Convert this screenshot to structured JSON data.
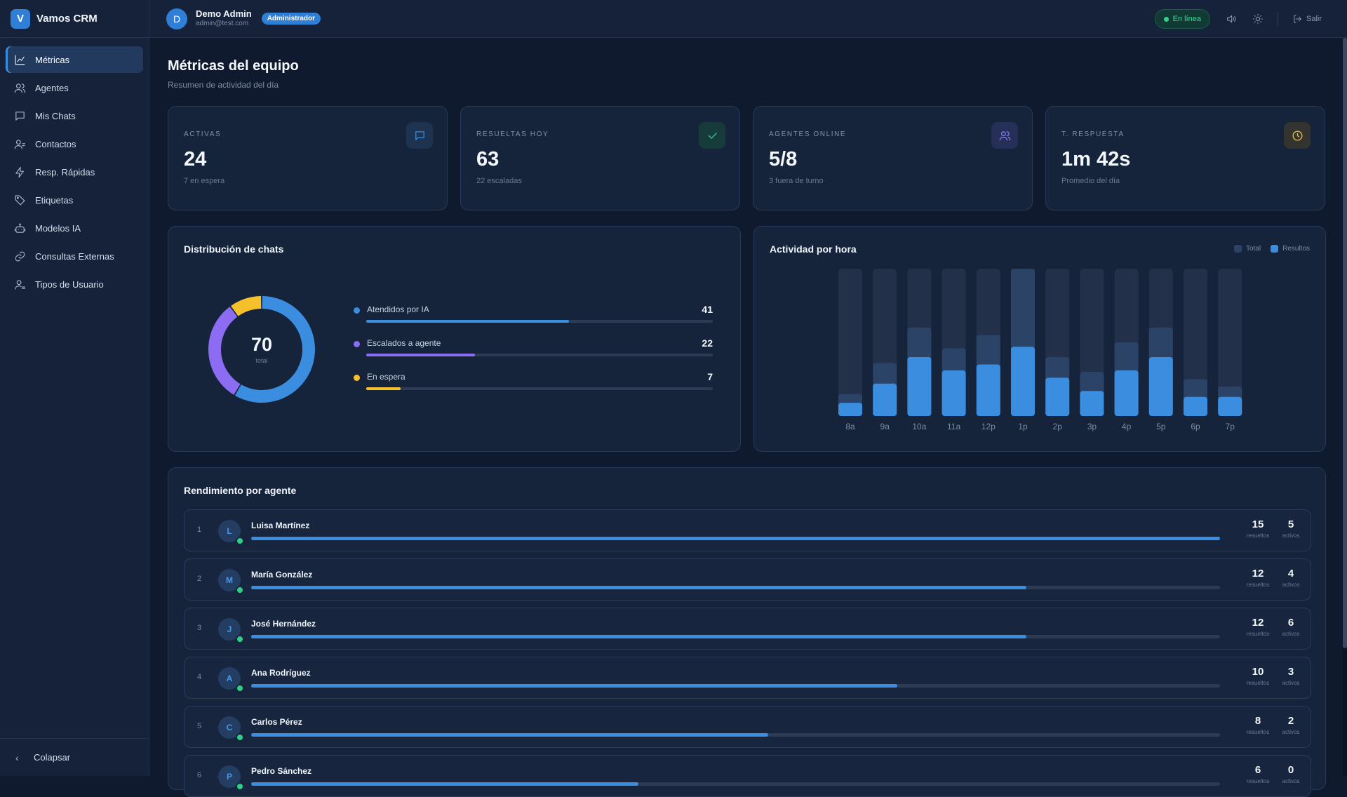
{
  "brand": {
    "logo_letter": "V",
    "name": "Vamos CRM"
  },
  "sidebar": {
    "items": [
      {
        "label": "Métricas",
        "icon": "chart-line-icon",
        "active": true
      },
      {
        "label": "Agentes",
        "icon": "users-icon"
      },
      {
        "label": "Mis Chats",
        "icon": "chat-icon"
      },
      {
        "label": "Contactos",
        "icon": "contacts-icon"
      },
      {
        "label": "Resp. Rápidas",
        "icon": "bolt-icon"
      },
      {
        "label": "Etiquetas",
        "icon": "tag-icon"
      },
      {
        "label": "Modelos IA",
        "icon": "robot-icon"
      },
      {
        "label": "Consultas Externas",
        "icon": "link-icon"
      },
      {
        "label": "Tipos de Usuario",
        "icon": "user-types-icon"
      }
    ],
    "collapse_label": "Colapsar"
  },
  "header": {
    "avatar_letter": "D",
    "user_name": "Demo Admin",
    "user_email": "admin@test.com",
    "role": "Administrador",
    "status": "En línea",
    "logout_label": "Salir"
  },
  "page": {
    "title": "Métricas del equipo",
    "subtitle": "Resumen de actividad del día"
  },
  "stats": [
    {
      "label": "ACTIVAS",
      "value": "24",
      "sub": "7 en espera",
      "icon": "chat-icon",
      "color": "#3b8ddf",
      "bg": "#1d3350"
    },
    {
      "label": "RESUELTAS HOY",
      "value": "63",
      "sub": "22 escaladas",
      "icon": "check-icon",
      "color": "#34d399",
      "bg": "#173a3b"
    },
    {
      "label": "AGENTES ONLINE",
      "value": "5/8",
      "sub": "3 fuera de turno",
      "icon": "users-icon",
      "color": "#8b7cf6",
      "bg": "#262f57"
    },
    {
      "label": "T. RESPUESTA",
      "value": "1m 42s",
      "sub": "Promedio del día",
      "icon": "clock-icon",
      "color": "#f5c02a",
      "bg": "#33342f"
    }
  ],
  "distribution": {
    "title": "Distribución de chats",
    "total": "70",
    "total_label": "total",
    "items": [
      {
        "label": "Atendidos por IA",
        "value": 41,
        "color": "#3b8ddf"
      },
      {
        "label": "Escalados a agente",
        "value": 22,
        "color": "#8b6cf2"
      },
      {
        "label": "En espera",
        "value": 7,
        "color": "#f5c02a"
      }
    ]
  },
  "chart_data": {
    "type": "bar",
    "title": "Actividad por hora",
    "categories": [
      "8a",
      "9a",
      "10a",
      "11a",
      "12p",
      "1p",
      "2p",
      "3p",
      "4p",
      "5p",
      "6p",
      "7p"
    ],
    "series": [
      {
        "name": "Total",
        "values": [
          15,
          36,
          60,
          46,
          55,
          100,
          40,
          30,
          50,
          60,
          25,
          20
        ],
        "color": "#2b4366"
      },
      {
        "name": "Resultos",
        "values": [
          9,
          22,
          40,
          31,
          35,
          47,
          26,
          17,
          31,
          40,
          13,
          13
        ],
        "color": "#3b8ddf"
      }
    ],
    "ylim": [
      0,
      100
    ],
    "legend": "top-right"
  },
  "performance": {
    "title": "Rendimiento por agente",
    "resolved_caption": "resueltos",
    "active_caption": "activos",
    "agents": [
      {
        "rank": "1",
        "initial": "L",
        "name": "Luisa Martínez",
        "resolved": 15,
        "active": 5
      },
      {
        "rank": "2",
        "initial": "M",
        "name": "María González",
        "resolved": 12,
        "active": 4
      },
      {
        "rank": "3",
        "initial": "J",
        "name": "José Hernández",
        "resolved": 12,
        "active": 6
      },
      {
        "rank": "4",
        "initial": "A",
        "name": "Ana Rodríguez",
        "resolved": 10,
        "active": 3
      },
      {
        "rank": "5",
        "initial": "C",
        "name": "Carlos Pérez",
        "resolved": 8,
        "active": 2
      },
      {
        "rank": "6",
        "initial": "P",
        "name": "Pedro Sánchez",
        "resolved": 6,
        "active": 0
      }
    ]
  }
}
